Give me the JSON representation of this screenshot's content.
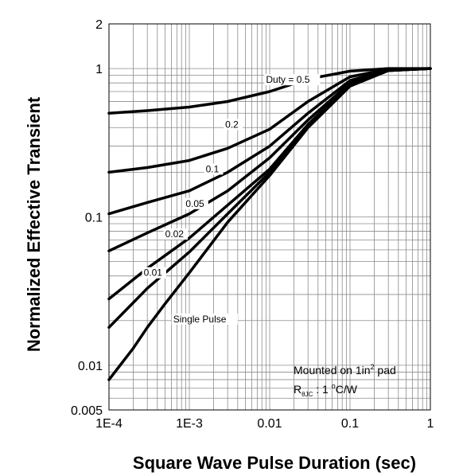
{
  "chart_data": {
    "type": "line",
    "xlabel": "Square Wave Pulse Duration (sec)",
    "ylabel": "Normalized Effective Transient",
    "xscale": "log",
    "yscale": "log",
    "xlim": [
      0.0001,
      1
    ],
    "ylim": [
      0.005,
      2
    ],
    "grid": true,
    "x_tick_labels": [
      "1E-4",
      "1E-3",
      "0.01",
      "0.1",
      "1"
    ],
    "y_tick_labels": [
      "0.005",
      "0.01",
      "0.1",
      "1",
      "2"
    ],
    "series": [
      {
        "name": "Duty = 0.5",
        "x": [
          0.0001,
          0.0003,
          0.001,
          0.003,
          0.01,
          0.03,
          0.1,
          0.3,
          1
        ],
        "y": [
          0.5,
          0.52,
          0.55,
          0.6,
          0.7,
          0.85,
          0.96,
          1.0,
          1.0
        ]
      },
      {
        "name": "0.2",
        "x": [
          0.0001,
          0.0003,
          0.001,
          0.003,
          0.01,
          0.03,
          0.1,
          0.3,
          1
        ],
        "y": [
          0.2,
          0.215,
          0.24,
          0.29,
          0.39,
          0.6,
          0.88,
          0.99,
          1.0
        ]
      },
      {
        "name": "0.1",
        "x": [
          0.0001,
          0.0003,
          0.001,
          0.003,
          0.01,
          0.03,
          0.1,
          0.3,
          1
        ],
        "y": [
          0.105,
          0.125,
          0.15,
          0.2,
          0.3,
          0.5,
          0.83,
          0.98,
          1.0
        ]
      },
      {
        "name": "0.05",
        "x": [
          0.0001,
          0.0003,
          0.001,
          0.003,
          0.01,
          0.03,
          0.1,
          0.3,
          1
        ],
        "y": [
          0.059,
          0.078,
          0.105,
          0.15,
          0.25,
          0.45,
          0.8,
          0.97,
          1.0
        ]
      },
      {
        "name": "0.02",
        "x": [
          0.0001,
          0.0003,
          0.001,
          0.003,
          0.01,
          0.03,
          0.1,
          0.3,
          1
        ],
        "y": [
          0.028,
          0.045,
          0.072,
          0.12,
          0.21,
          0.42,
          0.78,
          0.97,
          1.0
        ]
      },
      {
        "name": "0.01",
        "x": [
          0.0001,
          0.0003,
          0.001,
          0.003,
          0.01,
          0.03,
          0.1,
          0.3,
          1
        ],
        "y": [
          0.018,
          0.033,
          0.058,
          0.105,
          0.2,
          0.41,
          0.77,
          0.97,
          1.0
        ]
      },
      {
        "name": "Single Pulse",
        "x": [
          0.0001,
          0.0002,
          0.0003,
          0.0005,
          0.001,
          0.003,
          0.01,
          0.03,
          0.1,
          0.3,
          1
        ],
        "y": [
          0.008,
          0.013,
          0.018,
          0.026,
          0.042,
          0.092,
          0.19,
          0.4,
          0.76,
          0.97,
          1.0
        ]
      }
    ],
    "curve_labels": [
      {
        "text": "Duty = 0.5",
        "x": 0.009,
        "y": 0.8
      },
      {
        "text": "0.2",
        "x": 0.0028,
        "y": 0.4
      },
      {
        "text": "0.1",
        "x": 0.0016,
        "y": 0.2
      },
      {
        "text": "0.05",
        "x": 0.0009,
        "y": 0.117
      },
      {
        "text": "0.02",
        "x": 0.0005,
        "y": 0.073
      },
      {
        "text": "0.01",
        "x": 0.00027,
        "y": 0.04
      },
      {
        "text": "Single Pulse",
        "x": 0.00063,
        "y": 0.0195
      }
    ],
    "annotation": {
      "line1_prefix": "Mounted on 1in",
      "line1_sup": "2",
      "line1_suffix": " pad",
      "line2_main": "R",
      "line2_sub": "θJC",
      "line2_mid": " : 1 ",
      "line2_deg": "o",
      "line2_unit": "C/W"
    }
  }
}
